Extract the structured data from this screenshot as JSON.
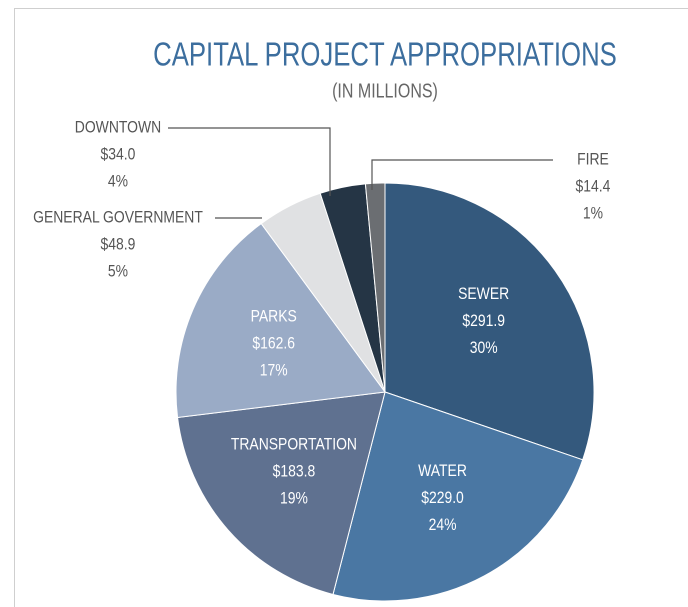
{
  "chart_data": {
    "type": "pie",
    "title": "CAPITAL PROJECT APPROPRIATIONS",
    "subtitle": "(IN MILLIONS)",
    "categories": [
      "SEWER",
      "WATER",
      "TRANSPORTATION",
      "PARKS",
      "GENERAL GOVERNMENT",
      "DOWNTOWN",
      "FIRE"
    ],
    "values": [
      291.9,
      229.0,
      183.8,
      162.6,
      48.9,
      34.0,
      14.4
    ],
    "value_labels": [
      "$291.9",
      "$229.0",
      "$183.8",
      "$162.6",
      "$48.9",
      "$34.0",
      "$14.4"
    ],
    "percent_labels": [
      "30%",
      "24%",
      "19%",
      "17%",
      "5%",
      "4%",
      "1%"
    ],
    "colors": [
      "#34597d",
      "#4a77a3",
      "#5f7190",
      "#9aabc6",
      "#e0e1e3",
      "#253545",
      "#6b6e72"
    ]
  }
}
